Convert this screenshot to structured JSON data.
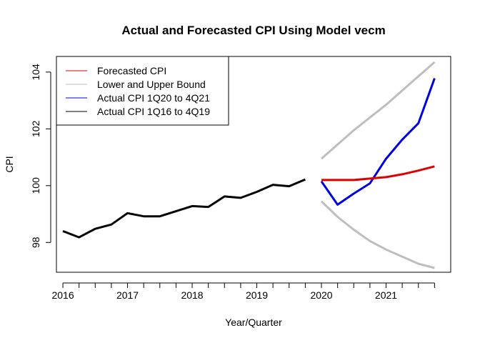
{
  "chart_data": {
    "type": "line",
    "title": "Actual and Forecasted CPI Using Model vecm",
    "xlabel": "Year/Quarter",
    "ylabel": "CPI",
    "xlim": [
      2015.9,
      2022.0
    ],
    "ylim": [
      96.95,
      104.55
    ],
    "x_ticks": [
      2016,
      2017,
      2018,
      2019,
      2020,
      2021
    ],
    "x_tick_labels": [
      "2016",
      "2017",
      "2018",
      "2019",
      "2020",
      "2021"
    ],
    "y_ticks": [
      98,
      100,
      102,
      104
    ],
    "y_tick_labels": [
      "98",
      "100",
      "102",
      "104"
    ],
    "legend_position": "top-left",
    "series": [
      {
        "name": "Forecasted CPI",
        "color": "#e00000",
        "x": [
          2020.0,
          2020.25,
          2020.5,
          2020.75,
          2021.0,
          2021.25,
          2021.5,
          2021.75
        ],
        "values": [
          100.2,
          100.2,
          100.2,
          100.25,
          100.3,
          100.4,
          100.53,
          100.68
        ]
      },
      {
        "name": "Lower and Upper Bound",
        "color": "#bebebe",
        "x": [
          2020.0,
          2020.25,
          2020.5,
          2020.75,
          2021.0,
          2021.25,
          2021.5,
          2021.75
        ],
        "values": [
          99.45,
          98.9,
          98.45,
          98.05,
          97.75,
          97.5,
          97.25,
          97.1
        ],
        "upper": [
          100.95,
          101.45,
          101.95,
          102.4,
          102.85,
          103.35,
          103.85,
          104.35
        ]
      },
      {
        "name": "Actual CPI 1Q20 to 4Q21",
        "color": "#0000e0",
        "x": [
          2020.0,
          2020.25,
          2020.5,
          2020.75,
          2021.0,
          2021.25,
          2021.5,
          2021.75
        ],
        "values": [
          100.15,
          99.33,
          99.72,
          100.08,
          100.95,
          101.62,
          102.2,
          103.78
        ]
      },
      {
        "name": "Actual CPI 1Q16 to 4Q19",
        "color": "#000000",
        "x": [
          2016.0,
          2016.25,
          2016.5,
          2016.75,
          2017.0,
          2017.25,
          2017.5,
          2017.75,
          2018.0,
          2018.25,
          2018.5,
          2018.75,
          2019.0,
          2019.25,
          2019.5,
          2019.75
        ],
        "values": [
          98.4,
          98.18,
          98.48,
          98.63,
          99.03,
          98.92,
          98.92,
          99.1,
          99.28,
          99.25,
          99.62,
          99.57,
          99.78,
          100.03,
          99.98,
          100.22
        ]
      }
    ]
  }
}
